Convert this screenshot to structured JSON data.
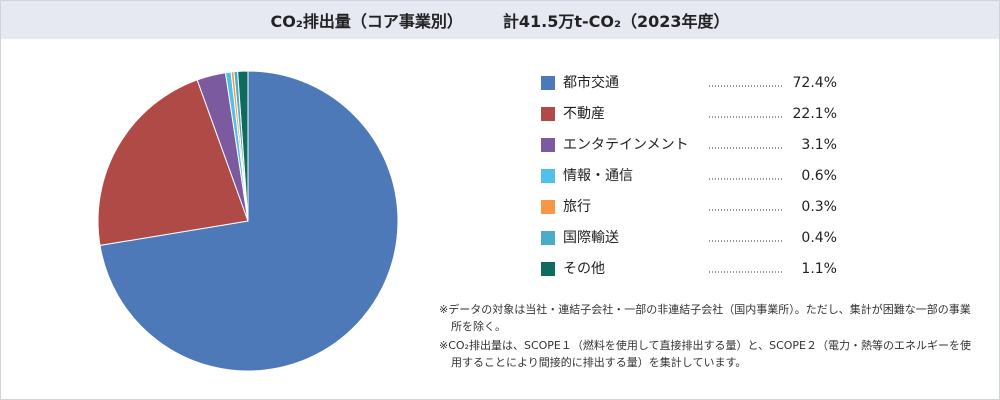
{
  "chart_data": {
    "type": "pie",
    "title": "CO₂排出量（コア事業別）",
    "subtitle": "計41.5万t-CO₂（2023年度）",
    "categories": [
      "都市交通",
      "不動産",
      "エンタテインメント",
      "情報・通信",
      "旅行",
      "国際輸送",
      "その他"
    ],
    "values": [
      72.4,
      22.1,
      3.1,
      0.6,
      0.3,
      0.4,
      1.1
    ],
    "value_labels": [
      "72.4%",
      "22.1%",
      "3.1%",
      "0.6%",
      "0.3%",
      "0.4%",
      "1.1%"
    ],
    "colors": [
      "#4e79b8",
      "#b04a47",
      "#7b5aa0",
      "#4fc0e8",
      "#f79646",
      "#4aacc6",
      "#0e6b5e"
    ],
    "notes": [
      "※データの対象は当社・連結子会社・一部の非連結子会社（国内事業所）。ただし、集計が困難な一部の事業所を除く。",
      "※CO₂排出量は、SCOPE１（燃料を使用して直接排出する量）と、SCOPE２（電力・熱等のエネルギーを使用することにより間接的に排出する量）を集計しています。"
    ]
  }
}
